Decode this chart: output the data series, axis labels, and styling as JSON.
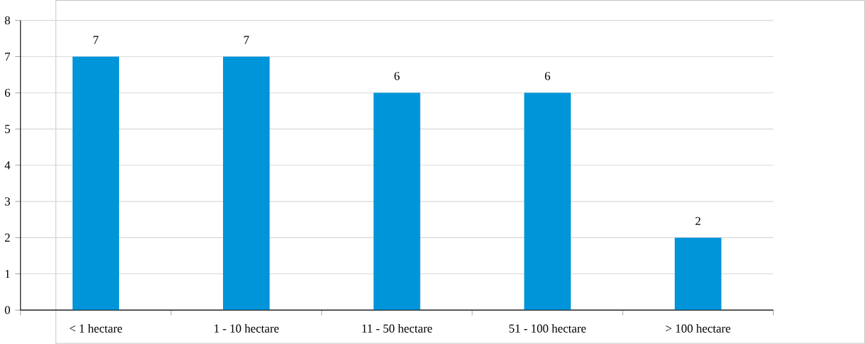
{
  "chart_data": {
    "type": "bar",
    "categories": [
      "< 1 hectare",
      "1 - 10 hectare",
      "11 - 50 hectare",
      "51 - 100 hectare",
      "> 100 hectare"
    ],
    "values": [
      7,
      7,
      6,
      6,
      2
    ],
    "color": "#0094d9",
    "ylim": [
      0,
      8
    ],
    "yticks": [
      0,
      1,
      2,
      3,
      4,
      5,
      6,
      7,
      8
    ],
    "grid": "y",
    "data_labels": true
  }
}
